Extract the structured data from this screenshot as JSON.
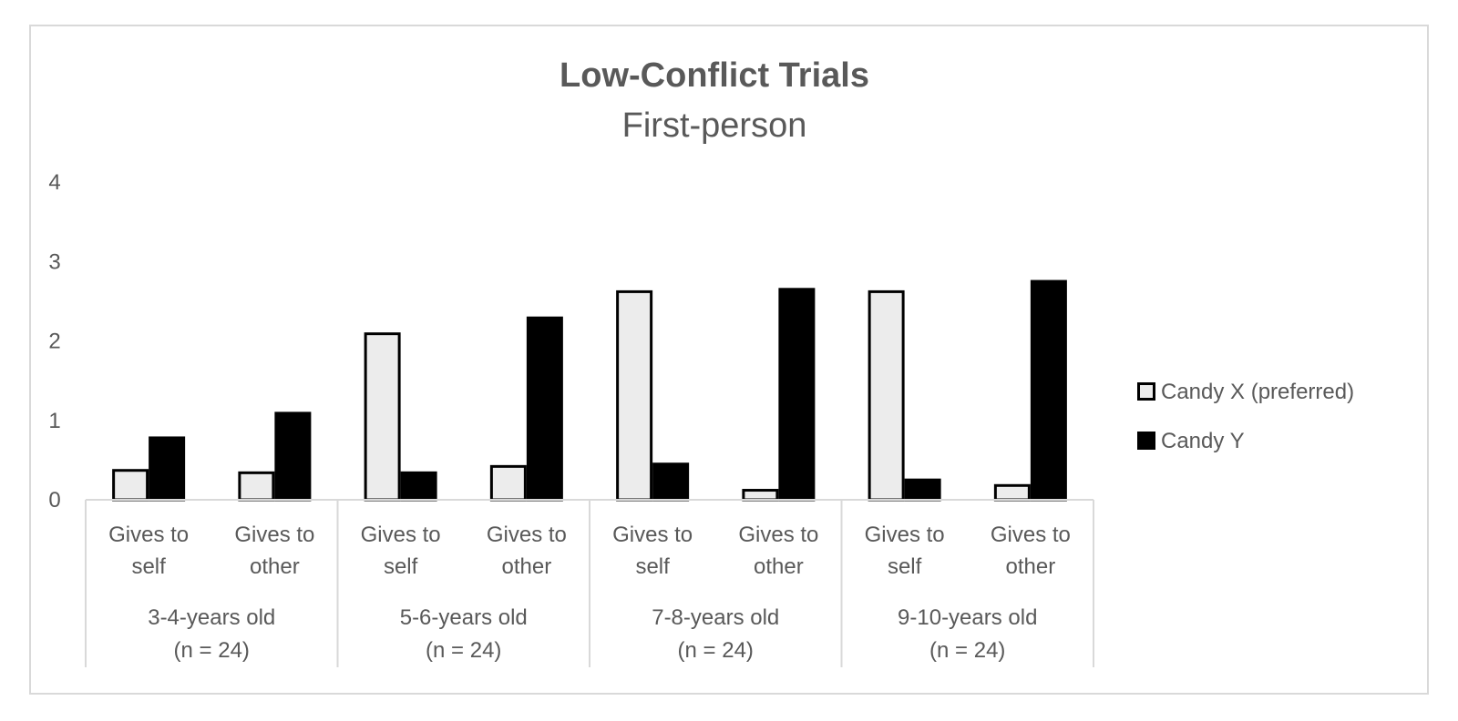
{
  "chart_data": {
    "type": "bar",
    "title": "Low-Conflict Trials",
    "subtitle": "First-person",
    "ylim": [
      0,
      4
    ],
    "yticks": [
      "0",
      "1",
      "2",
      "3",
      "4"
    ],
    "grid": false,
    "legend_position": "right",
    "groups": [
      {
        "label_line1": "3-4-years old",
        "label_line2": "(n = 24)"
      },
      {
        "label_line1": "5-6-years old",
        "label_line2": "(n = 24)"
      },
      {
        "label_line1": "7-8-years old",
        "label_line2": "(n = 24)"
      },
      {
        "label_line1": "9-10-years old",
        "label_line2": "(n = 24)"
      }
    ],
    "categories": [
      {
        "line1": "Gives to",
        "line2": "self"
      },
      {
        "line1": "Gives to",
        "line2": "other"
      },
      {
        "line1": "Gives to",
        "line2": "self"
      },
      {
        "line1": "Gives to",
        "line2": "other"
      },
      {
        "line1": "Gives to",
        "line2": "self"
      },
      {
        "line1": "Gives to",
        "line2": "other"
      },
      {
        "line1": "Gives to",
        "line2": "self"
      },
      {
        "line1": "Gives to",
        "line2": "other"
      }
    ],
    "series": [
      {
        "name": "Candy X (preferred)",
        "color": "#ececec",
        "stroke": "#000000",
        "values": [
          0.37,
          0.34,
          2.09,
          0.42,
          2.62,
          0.12,
          2.62,
          0.18
        ]
      },
      {
        "name": "Candy Y",
        "color": "#000000",
        "stroke": "#000000",
        "values": [
          0.78,
          1.09,
          0.34,
          2.29,
          0.45,
          2.65,
          0.25,
          2.75
        ]
      }
    ]
  }
}
